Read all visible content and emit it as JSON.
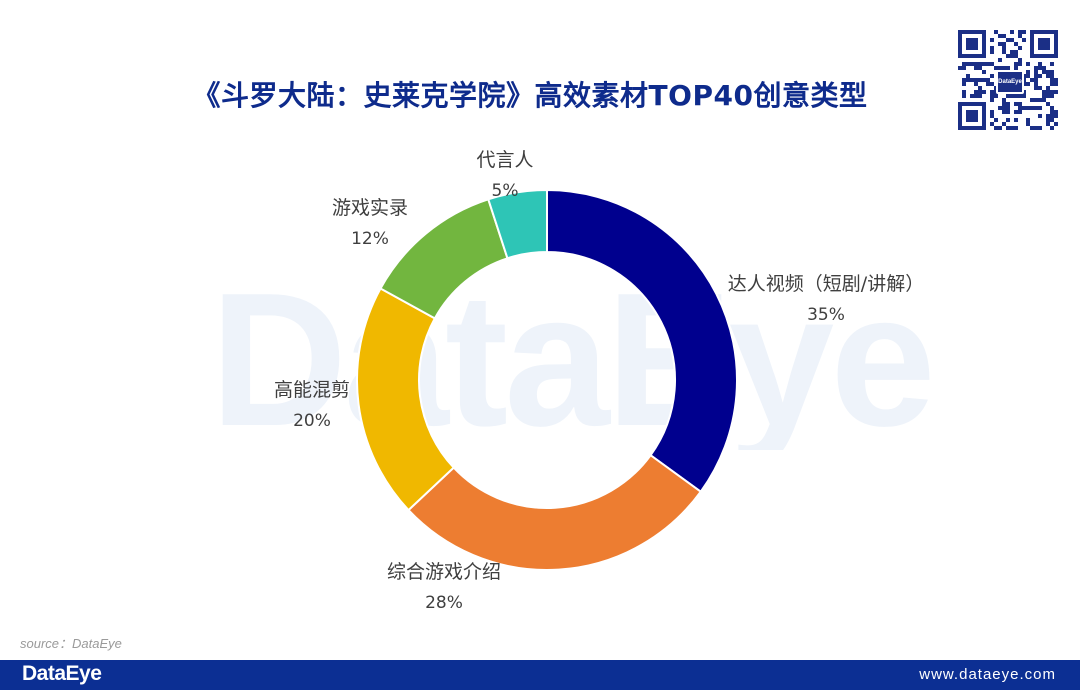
{
  "header": {
    "title": "《斗罗大陆：史莱克学院》高效素材TOP40创意类型"
  },
  "watermark": {
    "text": "DataEye"
  },
  "qr": {
    "logo_text": "DataEye"
  },
  "chart_data": {
    "type": "pie",
    "variant": "donut",
    "title": "《斗罗大陆：史莱克学院》高效素材TOP40创意类型",
    "slices": [
      {
        "label": "达人视频（短剧/讲解）",
        "value": 35,
        "value_label": "35%",
        "color": "#00008e"
      },
      {
        "label": "综合游戏介绍",
        "value": 28,
        "value_label": "28%",
        "color": "#ed7d31"
      },
      {
        "label": "高能混剪",
        "value": 20,
        "value_label": "20%",
        "color": "#f0b800"
      },
      {
        "label": "游戏实录",
        "value": 12,
        "value_label": "12%",
        "color": "#72b63f"
      },
      {
        "label": "代言人",
        "value": 5,
        "value_label": "5%",
        "color": "#2ec5b6"
      }
    ],
    "start": "12 o'clock",
    "direction": "clockwise",
    "legend": "none",
    "labels": "outside"
  },
  "footer": {
    "source": "source：DataEye",
    "brand": "DataEye",
    "url": "www.dataeye.com"
  }
}
